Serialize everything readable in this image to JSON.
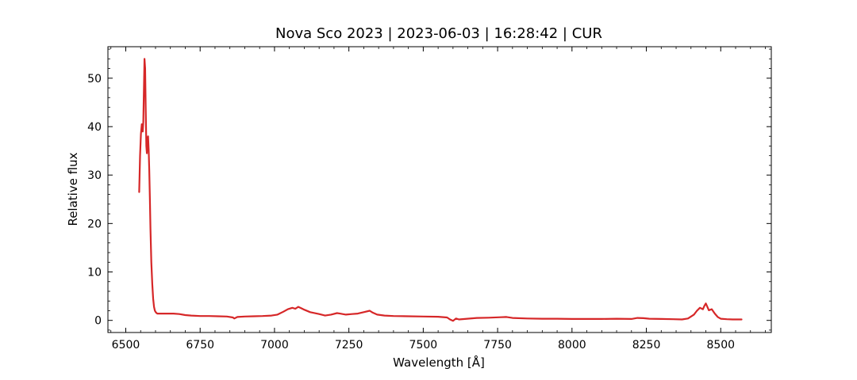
{
  "chart_data": {
    "type": "line",
    "title": "Nova Sco 2023 | 2023-06-03 | 16:28:42 | CUR",
    "xlabel": "Wavelength [Å]",
    "ylabel": "Relative flux",
    "xlim": [
      6440,
      8670
    ],
    "ylim": [
      -2.5,
      56.5
    ],
    "x_ticks": [
      6500,
      6750,
      7000,
      7250,
      7500,
      7750,
      8000,
      8250,
      8500
    ],
    "x_tick_labels": [
      "6500",
      "6750",
      "7000",
      "7250",
      "7500",
      "7750",
      "8000",
      "8250",
      "8500"
    ],
    "y_ticks": [
      0,
      10,
      20,
      30,
      40,
      50
    ],
    "y_tick_labels": [
      "0",
      "10",
      "20",
      "30",
      "40",
      "50"
    ],
    "grid": false,
    "series": [
      {
        "color": "#d62728",
        "x": [
          6545,
          6548,
          6551,
          6554,
          6557,
          6559,
          6561,
          6563,
          6565,
          6567,
          6569,
          6571,
          6573,
          6575,
          6577,
          6579,
          6581,
          6583,
          6586,
          6589,
          6592,
          6595,
          6598,
          6602,
          6606,
          6610,
          6615,
          6625,
          6640,
          6660,
          6680,
          6700,
          6720,
          6750,
          6780,
          6810,
          6840,
          6860,
          6865,
          6875,
          6900,
          6930,
          6960,
          6990,
          7010,
          7030,
          7045,
          7060,
          7070,
          7080,
          7090,
          7100,
          7120,
          7150,
          7170,
          7190,
          7210,
          7220,
          7240,
          7260,
          7280,
          7300,
          7320,
          7330,
          7345,
          7370,
          7400,
          7450,
          7500,
          7550,
          7580,
          7590,
          7600,
          7610,
          7620,
          7640,
          7680,
          7720,
          7760,
          7780,
          7800,
          7850,
          7900,
          7950,
          8000,
          8050,
          8100,
          8150,
          8200,
          8220,
          8240,
          8260,
          8300,
          8340,
          8370,
          8390,
          8410,
          8420,
          8430,
          8440,
          8445,
          8450,
          8455,
          8460,
          8470,
          8480,
          8490,
          8500,
          8520,
          8540,
          8560,
          8570
        ],
        "y": [
          26.5,
          34.0,
          38.5,
          40.5,
          39.0,
          41.0,
          48.0,
          54.0,
          52.0,
          44.0,
          36.0,
          34.5,
          37.5,
          38.0,
          35.0,
          31.0,
          25.0,
          19.0,
          12.0,
          7.5,
          4.5,
          2.8,
          2.0,
          1.6,
          1.4,
          1.4,
          1.4,
          1.4,
          1.4,
          1.4,
          1.3,
          1.1,
          1.0,
          0.9,
          0.9,
          0.85,
          0.8,
          0.6,
          0.4,
          0.7,
          0.8,
          0.85,
          0.9,
          1.0,
          1.2,
          1.8,
          2.3,
          2.6,
          2.4,
          2.8,
          2.5,
          2.2,
          1.7,
          1.3,
          1.0,
          1.2,
          1.5,
          1.4,
          1.2,
          1.3,
          1.4,
          1.7,
          2.0,
          1.6,
          1.2,
          1.0,
          0.9,
          0.85,
          0.8,
          0.75,
          0.6,
          0.2,
          -0.1,
          0.4,
          0.2,
          0.3,
          0.5,
          0.55,
          0.65,
          0.7,
          0.5,
          0.4,
          0.35,
          0.35,
          0.3,
          0.3,
          0.3,
          0.35,
          0.3,
          0.5,
          0.45,
          0.35,
          0.3,
          0.25,
          0.2,
          0.4,
          1.2,
          2.0,
          2.6,
          2.3,
          3.0,
          3.5,
          2.8,
          2.1,
          2.3,
          1.4,
          0.7,
          0.35,
          0.25,
          0.2,
          0.2,
          0.2
        ]
      }
    ]
  }
}
